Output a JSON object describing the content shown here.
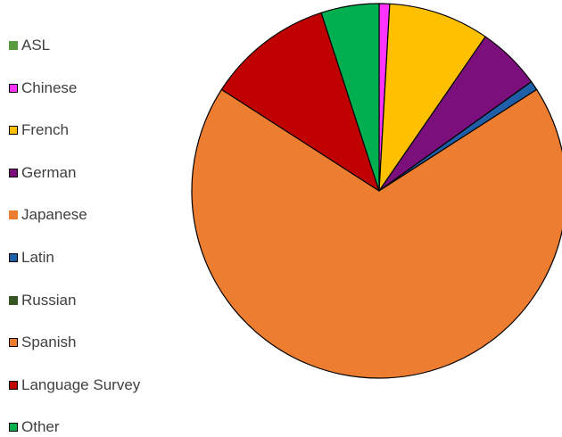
{
  "chart_data": {
    "type": "pie",
    "title": "",
    "legend_position": "left",
    "slices": [
      {
        "label": "ASL",
        "value": 0,
        "color": "#5b9b3f",
        "swatch_border": "#5b9b3f",
        "legend_label": "ASL"
      },
      {
        "label": "Chinese",
        "value": 0.9,
        "color": "#ff33ff",
        "swatch_border": "#000000",
        "legend_label": "Chinese"
      },
      {
        "label": "French",
        "value": 8.7,
        "color": "#ffc000",
        "swatch_border": "#000000",
        "legend_label": "French"
      },
      {
        "label": "German",
        "value": 5.5,
        "color": "#7b0f7b",
        "swatch_border": "#000000",
        "legend_label": "German"
      },
      {
        "label": "Japanese",
        "value": 0,
        "color": "#ed7d31",
        "swatch_border": "#ed7d31",
        "legend_label": "Japanese"
      },
      {
        "label": "Latin",
        "value": 0.8,
        "color": "#1f5fa8",
        "swatch_border": "#000000",
        "legend_label": "Latin"
      },
      {
        "label": "Russian",
        "value": 0,
        "color": "#375623",
        "swatch_border": "#375623",
        "legend_label": "Russian"
      },
      {
        "label": "Spanish",
        "value": 68.2,
        "color": "#ed7d31",
        "swatch_border": "#000000",
        "legend_label": "Spanish"
      },
      {
        "label": "Language Survey",
        "value": 10.9,
        "color": "#c00000",
        "swatch_border": "#000000",
        "legend_label": "Language Survey"
      },
      {
        "label": "Other",
        "value": 5.0,
        "color": "#00b050",
        "swatch_border": "#000000",
        "legend_label": "Other"
      }
    ]
  }
}
